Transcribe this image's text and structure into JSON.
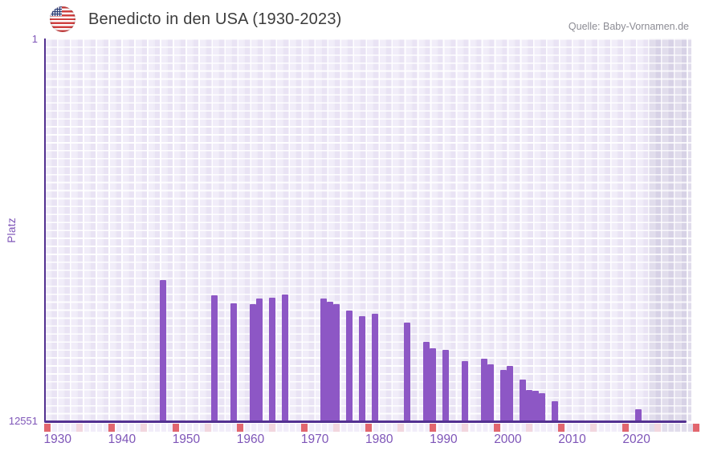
{
  "header": {
    "title": "Benedicto in den USA (1930-2023)",
    "source": "Quelle: Baby-Vornamen.de",
    "flag_icon": "us-flag-circle"
  },
  "y_axis": {
    "label": "Platz",
    "top_tick": "1",
    "bottom_tick": "12551"
  },
  "x_axis": {
    "decade_labels": [
      "1930",
      "1940",
      "1950",
      "1960",
      "1970",
      "1980",
      "1990",
      "2000",
      "2010",
      "2020"
    ],
    "minor_tick_step_years": 5
  },
  "chart_data": {
    "type": "bar",
    "title": "Benedicto in den USA (1930-2023)",
    "xlabel": "",
    "ylabel": "Platz",
    "x_range_years": [
      1930,
      2023
    ],
    "ylim": [
      1,
      12551
    ],
    "y_inverted": true,
    "grid": true,
    "no_data_shade_from_year": 2023.5,
    "points": [
      {
        "year": 1948,
        "rank": 7930
      },
      {
        "year": 1956,
        "rank": 8430
      },
      {
        "year": 1959,
        "rank": 8690
      },
      {
        "year": 1962,
        "rank": 8720
      },
      {
        "year": 1963,
        "rank": 8535
      },
      {
        "year": 1965,
        "rank": 8510
      },
      {
        "year": 1967,
        "rank": 8400
      },
      {
        "year": 1973,
        "rank": 8535
      },
      {
        "year": 1974,
        "rank": 8640
      },
      {
        "year": 1975,
        "rank": 8720
      },
      {
        "year": 1977,
        "rank": 8930
      },
      {
        "year": 1979,
        "rank": 9115
      },
      {
        "year": 1981,
        "rank": 9035
      },
      {
        "year": 1986,
        "rank": 9325
      },
      {
        "year": 1989,
        "rank": 9955
      },
      {
        "year": 1990,
        "rank": 10165
      },
      {
        "year": 1992,
        "rank": 10220
      },
      {
        "year": 1995,
        "rank": 10590
      },
      {
        "year": 1998,
        "rank": 10510
      },
      {
        "year": 1999,
        "rank": 10670
      },
      {
        "year": 2001,
        "rank": 10880
      },
      {
        "year": 2002,
        "rank": 10745
      },
      {
        "year": 2004,
        "rank": 11195
      },
      {
        "year": 2005,
        "rank": 11535
      },
      {
        "year": 2006,
        "rank": 11540
      },
      {
        "year": 2007,
        "rank": 11640
      },
      {
        "year": 2009,
        "rank": 11905
      },
      {
        "year": 2022,
        "rank": 12145
      }
    ]
  },
  "colors": {
    "bar": "#8d57c5",
    "axis_line": "#533191",
    "axis_text": "#7e55b8",
    "decade_tick_red": "#e2666e",
    "half_decade_tick_pink": "#f2d6de",
    "plot_bg": "#f1edf9",
    "future_bg": "#e1ddec",
    "title_text": "#3c3c3c",
    "source_text": "#8c8c94"
  }
}
